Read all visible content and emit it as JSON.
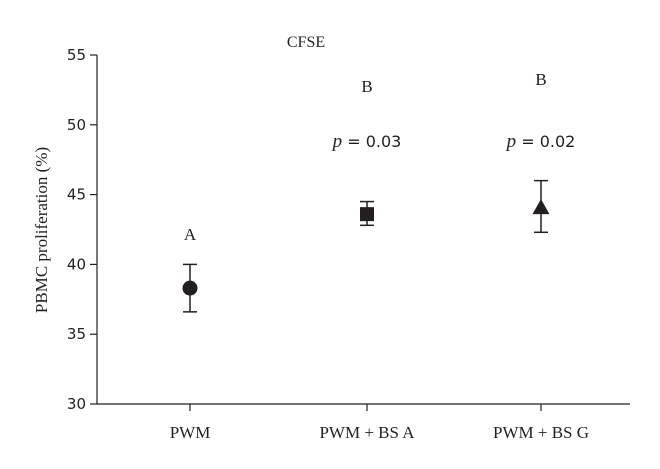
{
  "chart_data": {
    "type": "scatter",
    "title": "CFSE",
    "xlabel": "",
    "ylabel": "PBMC proliferation (%)",
    "ylim": [
      30,
      55
    ],
    "yticks": [
      30,
      35,
      40,
      45,
      50,
      55
    ],
    "grid": false,
    "categories": [
      "PWM",
      "PWM + BS A",
      "PWM + BS G"
    ],
    "points": [
      {
        "category": "PWM",
        "value": 38.3,
        "error_low": 36.6,
        "error_high": 40.0,
        "marker": "circle",
        "group_letter": "A",
        "p_label": "",
        "p_value": ""
      },
      {
        "category": "PWM + BS A",
        "value": 43.6,
        "error_low": 42.8,
        "error_high": 44.5,
        "marker": "square",
        "group_letter": "B",
        "p_label": "p",
        "p_value": " = 0.03"
      },
      {
        "category": "PWM + BS G",
        "value": 44.1,
        "error_low": 42.3,
        "error_high": 46.0,
        "marker": "triangle",
        "group_letter": "B",
        "p_label": "p",
        "p_value": " = 0.02"
      }
    ],
    "colors": {
      "ink": "#231f20"
    }
  }
}
